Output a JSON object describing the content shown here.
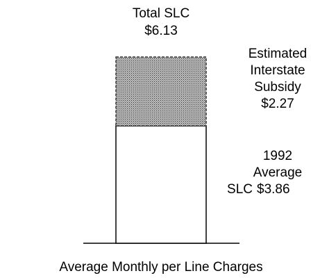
{
  "chart_data": {
    "type": "stacked_bar",
    "xlabel": "Average Monthly per Line Charges",
    "annotation": {
      "text": "Total SLC",
      "label": "$6.13"
    },
    "series": [
      {
        "name": "1992 Average SLC",
        "color": "#ffffff",
        "values": [
          3.86
        ],
        "value_labels": [
          "$3.86"
        ]
      },
      {
        "name": "Estimated Interstate Subsidy",
        "color": "#8a8a8a",
        "pattern": "stipple",
        "values": [
          2.27
        ],
        "value_labels": [
          "$2.27"
        ]
      }
    ]
  }
}
